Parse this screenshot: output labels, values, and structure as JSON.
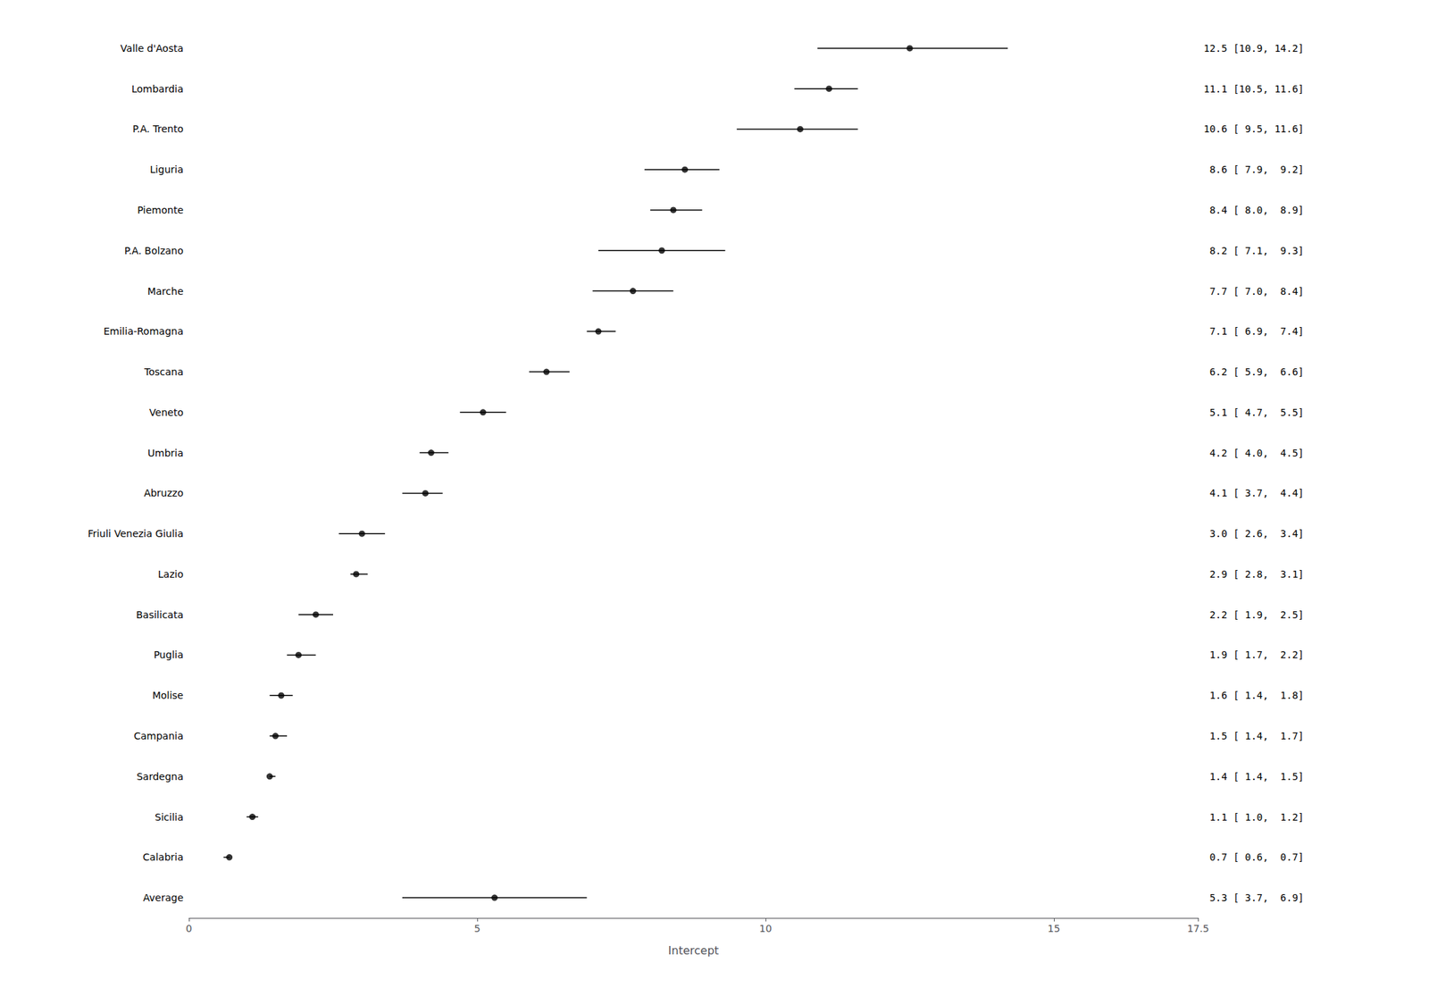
{
  "chart_data": {
    "type": "forest",
    "categories": [
      "Valle d'Aosta",
      "Lombardia",
      "P.A. Trento",
      "Liguria",
      "Piemonte",
      "P.A. Bolzano",
      "Marche",
      "Emilia-Romagna",
      "Toscana",
      "Veneto",
      "Umbria",
      "Abruzzo",
      "Friuli Venezia Giulia",
      "Lazio",
      "Basilicata",
      "Puglia",
      "Molise",
      "Campania",
      "Sardegna",
      "Sicilia",
      "Calabria",
      "Average"
    ],
    "values": [
      12.5,
      11.1,
      10.6,
      8.6,
      8.4,
      8.2,
      7.7,
      7.1,
      6.2,
      5.1,
      4.2,
      4.1,
      3.0,
      2.9,
      2.2,
      1.9,
      1.6,
      1.5,
      1.4,
      1.1,
      0.7,
      5.3
    ],
    "ci_low": [
      10.9,
      10.5,
      9.5,
      7.9,
      8.0,
      7.1,
      7.0,
      6.9,
      5.9,
      4.7,
      4.0,
      3.7,
      2.6,
      2.8,
      1.9,
      1.7,
      1.4,
      1.4,
      1.4,
      1.0,
      0.6,
      3.7
    ],
    "ci_high": [
      14.2,
      11.6,
      11.6,
      9.2,
      8.9,
      9.3,
      8.4,
      7.4,
      6.6,
      5.5,
      4.5,
      4.4,
      3.4,
      3.1,
      2.5,
      2.2,
      1.8,
      1.7,
      1.5,
      1.2,
      0.7,
      6.9
    ],
    "value_labels": [
      "12.5 [10.9, 14.2]",
      "11.1 [10.5, 11.6]",
      "10.6 [ 9.5, 11.6]",
      " 8.6 [ 7.9,  9.2]",
      " 8.4 [ 8.0,  8.9]",
      " 8.2 [ 7.1,  9.3]",
      " 7.7 [ 7.0,  8.4]",
      " 7.1 [ 6.9,  7.4]",
      " 6.2 [ 5.9,  6.6]",
      " 5.1 [ 4.7,  5.5]",
      " 4.2 [ 4.0,  4.5]",
      " 4.1 [ 3.7,  4.4]",
      " 3.0 [ 2.6,  3.4]",
      " 2.9 [ 2.8,  3.1]",
      " 2.2 [ 1.9,  2.5]",
      " 1.9 [ 1.7,  2.2]",
      " 1.6 [ 1.4,  1.8]",
      " 1.5 [ 1.4,  1.7]",
      " 1.4 [ 1.4,  1.5]",
      " 1.1 [ 1.0,  1.2]",
      " 0.7 [ 0.6,  0.7]",
      " 5.3 [ 3.7,  6.9]"
    ],
    "xlabel": "Intercept",
    "xlim": [
      0,
      17.5
    ],
    "xticks": [
      0,
      5,
      10,
      15
    ],
    "grid": false,
    "color": "#000000"
  }
}
